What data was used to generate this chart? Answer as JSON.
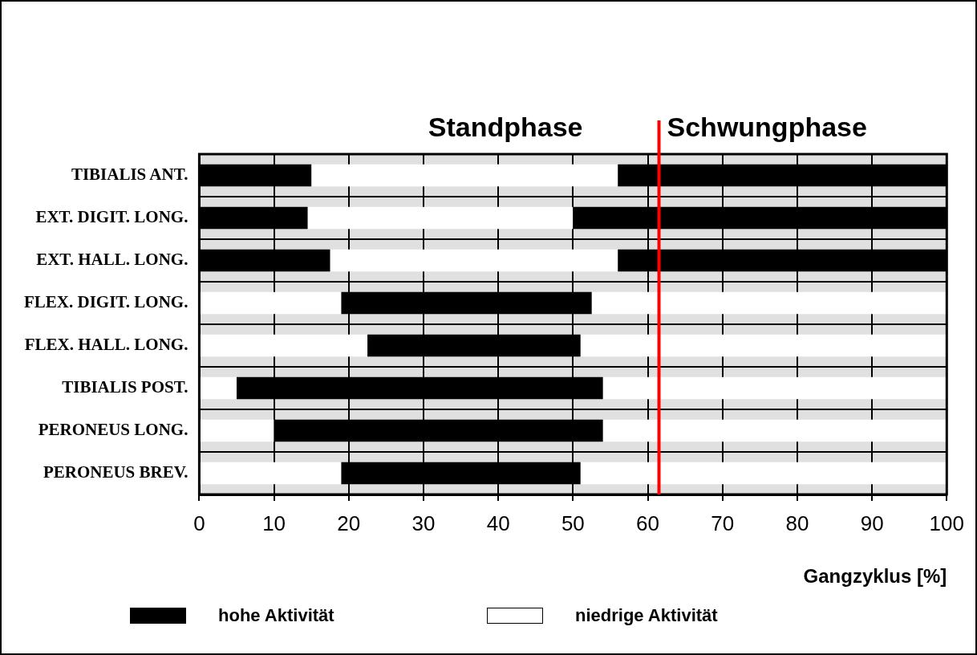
{
  "chart_data": {
    "type": "bar",
    "orientation": "horizontal",
    "xlabel": "Gangzyklus [%]",
    "categories": [
      "TIBIALIS ANT.",
      "EXT. DIGIT. LONG.",
      "EXT. HALL. LONG.",
      "FLEX. DIGIT. LONG.",
      "FLEX. HALL. LONG.",
      "TIBIALIS POST.",
      "PERONEUS LONG.",
      "PERONEUS BREV."
    ],
    "series": [
      {
        "name": "hohe Aktivität",
        "color": "#000000",
        "base": [
          0,
          0,
          0,
          19,
          22.5,
          5,
          10,
          19
        ],
        "values": [
          15,
          14.5,
          17.5,
          33.5,
          28.5,
          49,
          44,
          32
        ]
      },
      {
        "color": "#000000",
        "base": [
          56,
          50,
          56,
          null,
          null,
          null,
          null,
          null
        ],
        "values": [
          44,
          50,
          44,
          null,
          null,
          null,
          null,
          null
        ]
      },
      {
        "name": "niedrige Aktivität",
        "color": "#ffffff",
        "base": [
          15,
          14.5,
          17.5,
          0,
          0,
          0,
          0,
          0
        ],
        "values": [
          41,
          35.5,
          38.5,
          19,
          22.5,
          5,
          10,
          19
        ]
      },
      {
        "color": "#ffffff",
        "base": [
          null,
          null,
          null,
          52.5,
          51,
          54,
          54,
          51
        ],
        "values": [
          null,
          null,
          null,
          47.5,
          49,
          46,
          46,
          49
        ]
      }
    ],
    "xlim": [
      0,
      100
    ],
    "xticks": [
      0,
      10,
      20,
      30,
      40,
      50,
      60,
      70,
      80,
      90,
      100
    ],
    "ref_lines": [
      {
        "axis": "x",
        "value": 61.5,
        "color": "#ff0000"
      }
    ],
    "annotations": [
      "Standphase",
      "Schwungphase"
    ],
    "grid": true,
    "legend": "bottom"
  }
}
